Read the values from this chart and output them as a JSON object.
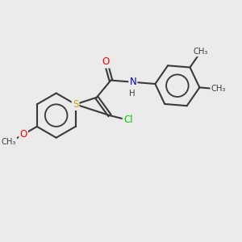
{
  "bg_color": "#ebebeb",
  "bond_color": "#3a3a3a",
  "bond_width": 1.5,
  "atom_colors": {
    "Cl": "#00cc00",
    "O": "#ff0000",
    "N": "#0000cc",
    "S": "#ccaa00",
    "C": "#3a3a3a"
  },
  "font_size": 8.5,
  "xlim": [
    -4.0,
    6.5
  ],
  "ylim": [
    -3.5,
    3.5
  ]
}
